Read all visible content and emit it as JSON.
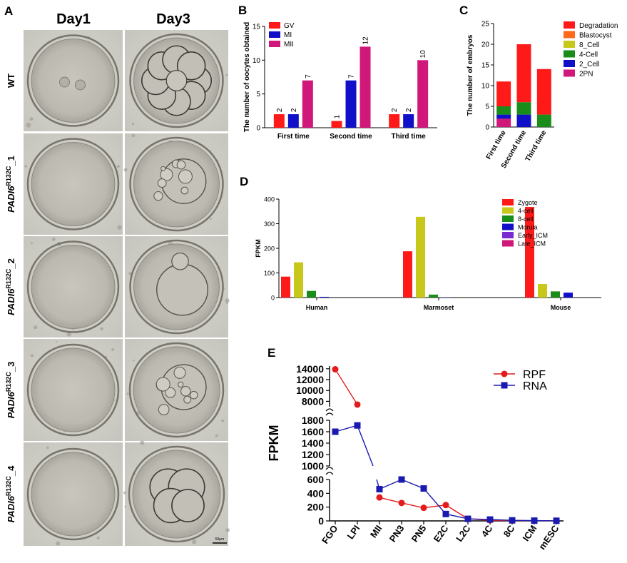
{
  "panels": {
    "a": {
      "letter": "A",
      "columns": [
        "Day1",
        "Day3"
      ],
      "row_labels": [
        "WT",
        "PADI6",
        "PADI6",
        "PADI6",
        "PADI6"
      ],
      "row_superscripts": [
        "",
        "R132C",
        "R132C",
        "R132C",
        "R132C"
      ],
      "row_suffixes": [
        "",
        "_1",
        "_2",
        "_3",
        "_4"
      ],
      "scale_bar_label": "50μm"
    },
    "b": {
      "letter": "B"
    },
    "c": {
      "letter": "C"
    },
    "d": {
      "letter": "D"
    },
    "e": {
      "letter": "E"
    }
  },
  "colors": {
    "red": "#ff1a1a",
    "blue": "#1010c8",
    "magenta": "#d0177a",
    "orange": "#ff6a1a",
    "olive": "#c8c81a",
    "green": "#1a8c1a",
    "purple": "#7a2ad0",
    "rpf": "#e41a1c",
    "rna": "#1a1ab0"
  },
  "chart_data": [
    {
      "id": "B",
      "type": "bar",
      "ylabel": "The number of oocytes obtained",
      "categories": [
        "First time",
        "Second time",
        "Third time"
      ],
      "series": [
        {
          "name": "GV",
          "values": [
            2,
            1,
            2
          ],
          "color": "#ff1a1a"
        },
        {
          "name": "MI",
          "values": [
            2,
            7,
            2
          ],
          "color": "#1010c8"
        },
        {
          "name": "MII",
          "values": [
            7,
            12,
            10
          ],
          "color": "#d0177a"
        }
      ],
      "ylim": [
        0,
        15
      ],
      "yticks": [
        0,
        5,
        10,
        15
      ],
      "data_labels": true,
      "legend": "top-left"
    },
    {
      "id": "C",
      "type": "bar",
      "stacked": true,
      "ylabel": "The number of embryos",
      "categories": [
        "First time",
        "Second time",
        "Third time"
      ],
      "series": [
        {
          "name": "Degradation",
          "values": [
            6,
            14,
            11
          ],
          "color": "#ff1a1a"
        },
        {
          "name": "Blastocyst",
          "values": [
            0,
            0,
            0
          ],
          "color": "#ff6a1a"
        },
        {
          "name": "8_Cell",
          "values": [
            0,
            0,
            0
          ],
          "color": "#c8c81a"
        },
        {
          "name": "4-Cell",
          "values": [
            2,
            3,
            3
          ],
          "color": "#1a8c1a"
        },
        {
          "name": "2_Cell",
          "values": [
            1,
            3,
            0
          ],
          "color": "#1010c8"
        },
        {
          "name": "2PN",
          "values": [
            2,
            0,
            0
          ],
          "color": "#d0177a"
        }
      ],
      "ylim": [
        0,
        25
      ],
      "yticks": [
        0,
        5,
        10,
        15,
        20,
        25
      ],
      "legend": "right"
    },
    {
      "id": "D",
      "type": "bar",
      "ylabel": "FPKM",
      "categories": [
        "Human",
        "Marmoset",
        "Mouse"
      ],
      "series": [
        {
          "name": "Zygote",
          "values": [
            85,
            188,
            368
          ],
          "color": "#ff1a1a"
        },
        {
          "name": "4-cell",
          "values": [
            143,
            328,
            55
          ],
          "color": "#c8c81a"
        },
        {
          "name": "8-cell",
          "values": [
            27,
            12,
            25
          ],
          "color": "#1a8c1a"
        },
        {
          "name": "Morula",
          "values": [
            3,
            1,
            20
          ],
          "color": "#1010c8"
        },
        {
          "name": "Early_ICM",
          "values": [
            0,
            0,
            0
          ],
          "color": "#7a2ad0"
        },
        {
          "name": "Late_ICM",
          "values": [
            0,
            0,
            0
          ],
          "color": "#d0177a"
        }
      ],
      "ylim": [
        0,
        400
      ],
      "yticks": [
        0,
        100,
        200,
        300,
        400
      ],
      "legend": "top-right"
    },
    {
      "id": "E",
      "type": "line",
      "ylabel": "FPKM",
      "categories": [
        "FGO",
        "LPI",
        "MII",
        "PN3",
        "PN5",
        "E2C",
        "L2C",
        "4C",
        "8C",
        "ICM",
        "mESC"
      ],
      "series": [
        {
          "name": "RPF",
          "values": [
            13900,
            7400,
            340,
            260,
            190,
            230,
            30,
            10,
            5,
            3,
            2
          ],
          "color": "#e41a1c",
          "marker": "circle"
        },
        {
          "name": "RNA",
          "values": [
            1600,
            1710,
            460,
            600,
            470,
            100,
            30,
            20,
            8,
            4,
            2
          ],
          "color": "#1a1ab0",
          "marker": "square"
        }
      ],
      "broken_axis": true,
      "segments": [
        {
          "range": [
            0,
            600
          ],
          "ticks": [
            0,
            200,
            400,
            600
          ]
        },
        {
          "range": [
            1000,
            1800
          ],
          "ticks": [
            1000,
            1200,
            1400,
            1600,
            1800
          ]
        },
        {
          "range": [
            7000,
            14500
          ],
          "ticks": [
            8000,
            10000,
            12000,
            14000
          ]
        }
      ],
      "legend": "top-right"
    }
  ]
}
